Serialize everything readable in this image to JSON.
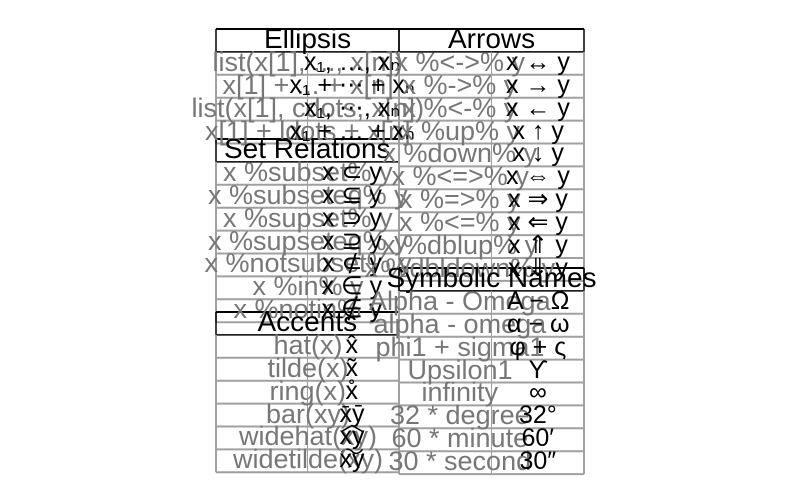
{
  "panels": {
    "ellipsis": {
      "title": "Ellipsis",
      "rows": [
        {
          "code": "list(x[1], ..., x[n])",
          "render": "x₁, …, xₙ"
        },
        {
          "code": "x[1] + ... + x[n]",
          "render": "x₁ + ⋯ + xₙ"
        },
        {
          "code": "list(x[1], cdots, x[n])",
          "render": "x₁, ⋯, xₙ"
        },
        {
          "code": "x[1] + ldots + x[n]",
          "render": "x₁ + … + xₙ"
        }
      ]
    },
    "set_relations": {
      "title": "Set Relations",
      "rows": [
        {
          "code": "x %subset% y",
          "render": "x ⊂ y"
        },
        {
          "code": "x %subseteq% y",
          "render": "x ⊆ y"
        },
        {
          "code": "x %supset% y",
          "render": "x ⊃ y"
        },
        {
          "code": "x %supseteq% y",
          "render": "x ⊇ y"
        },
        {
          "code": "x %notsubset% y",
          "render": "x ⊄ y"
        },
        {
          "code": "x %in% y",
          "render": "x ∈ y"
        },
        {
          "code": "x %notin% y",
          "render": "x ∉ y"
        }
      ]
    },
    "accents": {
      "title": "Accents",
      "rows": [
        {
          "code": "hat(x)",
          "render": "x̂"
        },
        {
          "code": "tilde(x)",
          "render": "x̃"
        },
        {
          "code": "ring(x)",
          "render": "x̊"
        },
        {
          "code": "bar(xy)",
          "render": "x̄ȳ"
        },
        {
          "code": "widehat(xy)",
          "render": "xy"
        },
        {
          "code": "widetilde(xy)",
          "render": "xy"
        }
      ]
    },
    "arrows": {
      "title": "Arrows",
      "rows": [
        {
          "code": "x %<->% y",
          "render": "x ↔ y"
        },
        {
          "code": "x %->% y",
          "render": "x → y"
        },
        {
          "code": "x %<-% y",
          "render": "x ← y"
        },
        {
          "code": "x %up% y",
          "render": "x ↑ y"
        },
        {
          "code": "x %down% y",
          "render": "x ↓ y"
        },
        {
          "code": "x %<=>% y",
          "render": "x ⇔ y"
        },
        {
          "code": "x %=>% y",
          "render": "x ⇒ y"
        },
        {
          "code": "x %<=% y",
          "render": "x ⇐ y"
        },
        {
          "code": "x %dblup% y",
          "render": "x ⇑ y"
        },
        {
          "code": "x %dbldown% y",
          "render": "x ⇓ y"
        }
      ]
    },
    "symbolic_names": {
      "title": "Symbolic Names",
      "rows": [
        {
          "code": "Alpha - Omega",
          "render": "Α − Ω"
        },
        {
          "code": "alpha - omega",
          "render": "α − ω"
        },
        {
          "code": "phi1 + sigma1",
          "render": "φ + ς"
        },
        {
          "code": "Upsilon1",
          "render": "ϒ"
        },
        {
          "code": "infinity",
          "render": "∞"
        },
        {
          "code": "32 * degree",
          "render": "32°"
        },
        {
          "code": "60 * minute",
          "render": "60′"
        },
        {
          "code": "30 * second",
          "render": "30″"
        }
      ]
    }
  },
  "colors": {
    "grid": "#a0a0a0",
    "header_line": "#000000",
    "code_text": "#777777",
    "render_text": "#000000"
  }
}
